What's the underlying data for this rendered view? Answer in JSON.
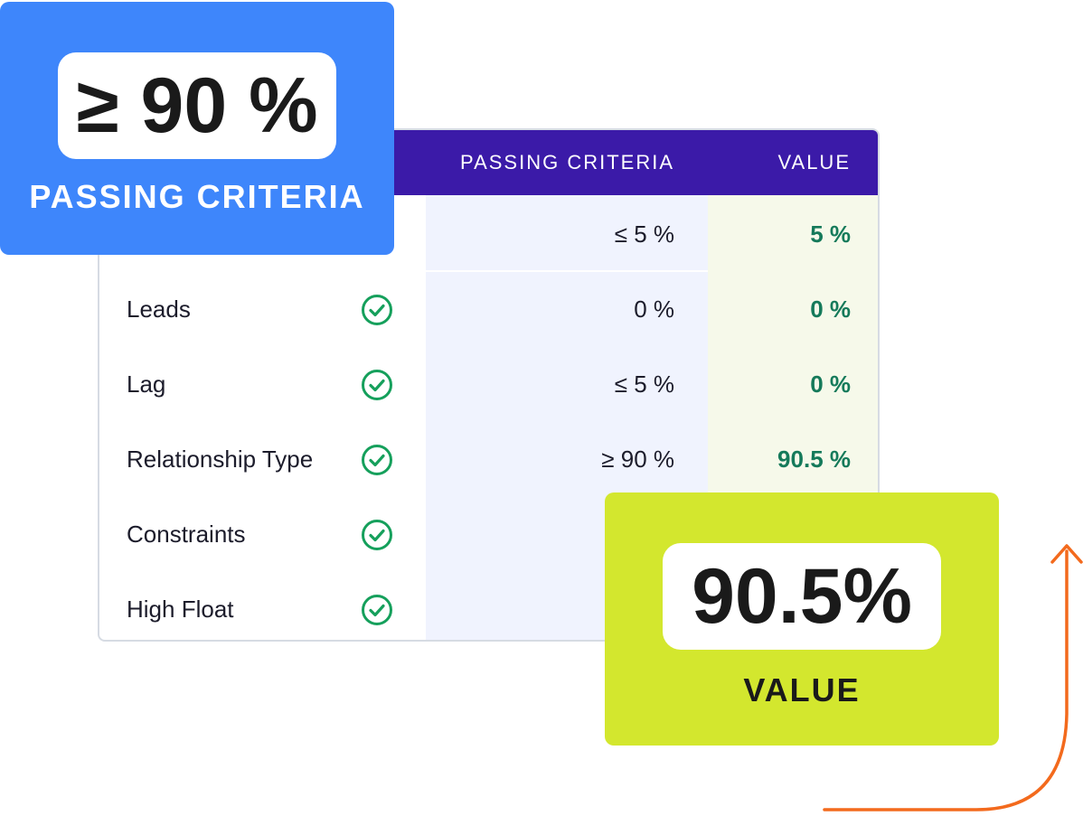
{
  "table": {
    "header": {
      "passing_criteria": "PASSING CRITERIA",
      "value": "VALUE"
    },
    "rows": [
      {
        "name": "",
        "passing": "≤ 5 %",
        "value": "5 %"
      },
      {
        "name": "Leads",
        "passing": "0 %",
        "value": "0 %"
      },
      {
        "name": "Lag",
        "passing": "≤ 5 %",
        "value": "0 %"
      },
      {
        "name": "Relationship Type",
        "passing": "≥ 90 %",
        "value": "90.5  %"
      },
      {
        "name": "Constraints",
        "passing": "",
        "value": ""
      },
      {
        "name": "High Float",
        "passing": "",
        "value": ""
      }
    ]
  },
  "callout_passing": {
    "value": "≥ 90 %",
    "label": "PASSING CRITERIA"
  },
  "callout_value": {
    "value": "90.5%",
    "label": "VALUE"
  },
  "colors": {
    "header_bg": "#3b1aa8",
    "check_green": "#16a05c",
    "value_text": "#157a5a",
    "callout_blue": "#3e86fb",
    "callout_green": "#d3e72e",
    "arrow_orange": "#f36a1d"
  }
}
